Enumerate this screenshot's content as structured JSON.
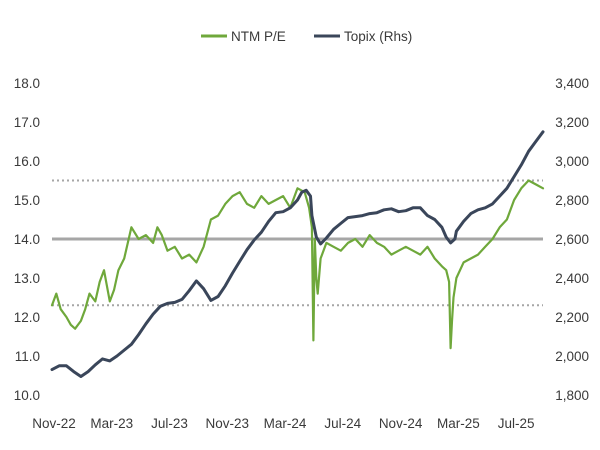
{
  "chart_data": {
    "type": "line",
    "title": "",
    "legend": {
      "placement": "top-center",
      "items": [
        {
          "label": "NTM P/E",
          "color": "#6fa83b"
        },
        {
          "label": "Topix (Rhs)",
          "color": "#3a465a"
        }
      ]
    },
    "x_tick_labels": [
      "Nov-22",
      "Mar-23",
      "Jul-23",
      "Nov-23",
      "Mar-24",
      "Jul-24",
      "Nov-24",
      "Mar-25",
      "Jul-25"
    ],
    "x_range": [
      0,
      34
    ],
    "y_left": {
      "range": [
        10.0,
        18.0
      ],
      "tick_labels": [
        "10.0",
        "11.0",
        "12.0",
        "13.0",
        "14.0",
        "15.0",
        "16.0",
        "17.0",
        "18.0"
      ]
    },
    "y_right": {
      "range": [
        1800,
        3400
      ],
      "tick_labels": [
        "1,800",
        "2,000",
        "2,200",
        "2,400",
        "2,600",
        "2,800",
        "3,000",
        "3,200",
        "3,400"
      ]
    },
    "reference_lines": [
      {
        "name": "mean",
        "axis": "left",
        "value": 14.0,
        "style": "solid",
        "color": "#a6a6a6"
      },
      {
        "name": "plus-1-sd",
        "axis": "left",
        "value": 15.5,
        "style": "dotted",
        "color": "#a6a6a6"
      },
      {
        "name": "minus-1-sd",
        "axis": "left",
        "value": 12.3,
        "style": "dotted",
        "color": "#a6a6a6"
      }
    ],
    "series": [
      {
        "name": "NTM P/E",
        "axis": "left",
        "color": "#6fa83b",
        "x": [
          0,
          0.3,
          0.6,
          1,
          1.3,
          1.6,
          2,
          2.3,
          2.6,
          3,
          3.3,
          3.6,
          4,
          4.3,
          4.6,
          5,
          5.5,
          6,
          6.5,
          7,
          7.3,
          7.6,
          8,
          8.5,
          9,
          9.5,
          10,
          10.5,
          11,
          11.5,
          12,
          12.5,
          13,
          13.5,
          14,
          14.5,
          15,
          15.5,
          16,
          16.5,
          17,
          17.5,
          17.8,
          18,
          18.1,
          18.2,
          18.3,
          18.4,
          18.6,
          19,
          19.5,
          20,
          20.5,
          21,
          21.5,
          22,
          22.5,
          23,
          23.5,
          24,
          24.5,
          25,
          25.5,
          26,
          26.5,
          27,
          27.3,
          27.5,
          27.6,
          27.7,
          27.8,
          28,
          28.5,
          29,
          29.5,
          30,
          30.5,
          31,
          31.5,
          32,
          32.5,
          33,
          33.5,
          34
        ],
        "values": [
          12.3,
          12.6,
          12.2,
          12.0,
          11.8,
          11.7,
          11.9,
          12.2,
          12.6,
          12.4,
          12.9,
          13.2,
          12.4,
          12.7,
          13.2,
          13.5,
          14.3,
          14.0,
          14.1,
          13.9,
          14.3,
          14.1,
          13.7,
          13.8,
          13.5,
          13.6,
          13.4,
          13.8,
          14.5,
          14.6,
          14.9,
          15.1,
          15.2,
          14.9,
          14.8,
          15.1,
          14.9,
          15.0,
          15.1,
          14.8,
          15.3,
          15.2,
          14.8,
          14.3,
          11.4,
          14.0,
          13.0,
          12.6,
          13.5,
          13.9,
          13.8,
          13.7,
          13.9,
          14.0,
          13.8,
          14.1,
          13.9,
          13.8,
          13.6,
          13.7,
          13.8,
          13.7,
          13.6,
          13.8,
          13.5,
          13.3,
          13.2,
          12.9,
          11.2,
          11.9,
          12.5,
          13.0,
          13.4,
          13.5,
          13.6,
          13.8,
          14.0,
          14.3,
          14.5,
          15.0,
          15.3,
          15.5,
          15.4,
          15.3
        ]
      },
      {
        "name": "Topix (Rhs)",
        "axis": "right",
        "color": "#3a465a",
        "x": [
          0,
          0.5,
          1,
          1.5,
          2,
          2.5,
          3,
          3.5,
          4,
          4.5,
          5,
          5.5,
          6,
          6.5,
          7,
          7.5,
          8,
          8.5,
          9,
          9.5,
          10,
          10.5,
          11,
          11.5,
          12,
          12.5,
          13,
          13.5,
          14,
          14.5,
          15,
          15.5,
          16,
          16.5,
          17,
          17.3,
          17.6,
          17.9,
          18,
          18.3,
          18.6,
          19,
          19.5,
          20,
          20.5,
          21,
          21.5,
          22,
          22.5,
          23,
          23.5,
          24,
          24.5,
          25,
          25.5,
          26,
          26.5,
          27,
          27.3,
          27.6,
          27.9,
          28,
          28.5,
          29,
          29.5,
          30,
          30.5,
          31,
          31.5,
          32,
          32.5,
          33,
          33.5,
          34
        ],
        "values": [
          1930,
          1950,
          1950,
          1920,
          1895,
          1920,
          1955,
          1985,
          1975,
          2000,
          2030,
          2060,
          2110,
          2165,
          2215,
          2255,
          2270,
          2275,
          2290,
          2335,
          2385,
          2345,
          2285,
          2305,
          2360,
          2425,
          2485,
          2545,
          2595,
          2635,
          2690,
          2735,
          2740,
          2760,
          2800,
          2840,
          2850,
          2820,
          2720,
          2610,
          2575,
          2605,
          2650,
          2680,
          2710,
          2715,
          2720,
          2730,
          2735,
          2750,
          2755,
          2740,
          2745,
          2760,
          2760,
          2720,
          2700,
          2660,
          2610,
          2580,
          2600,
          2640,
          2690,
          2730,
          2750,
          2760,
          2780,
          2820,
          2860,
          2920,
          2980,
          3050,
          3100,
          3150
        ]
      }
    ]
  }
}
